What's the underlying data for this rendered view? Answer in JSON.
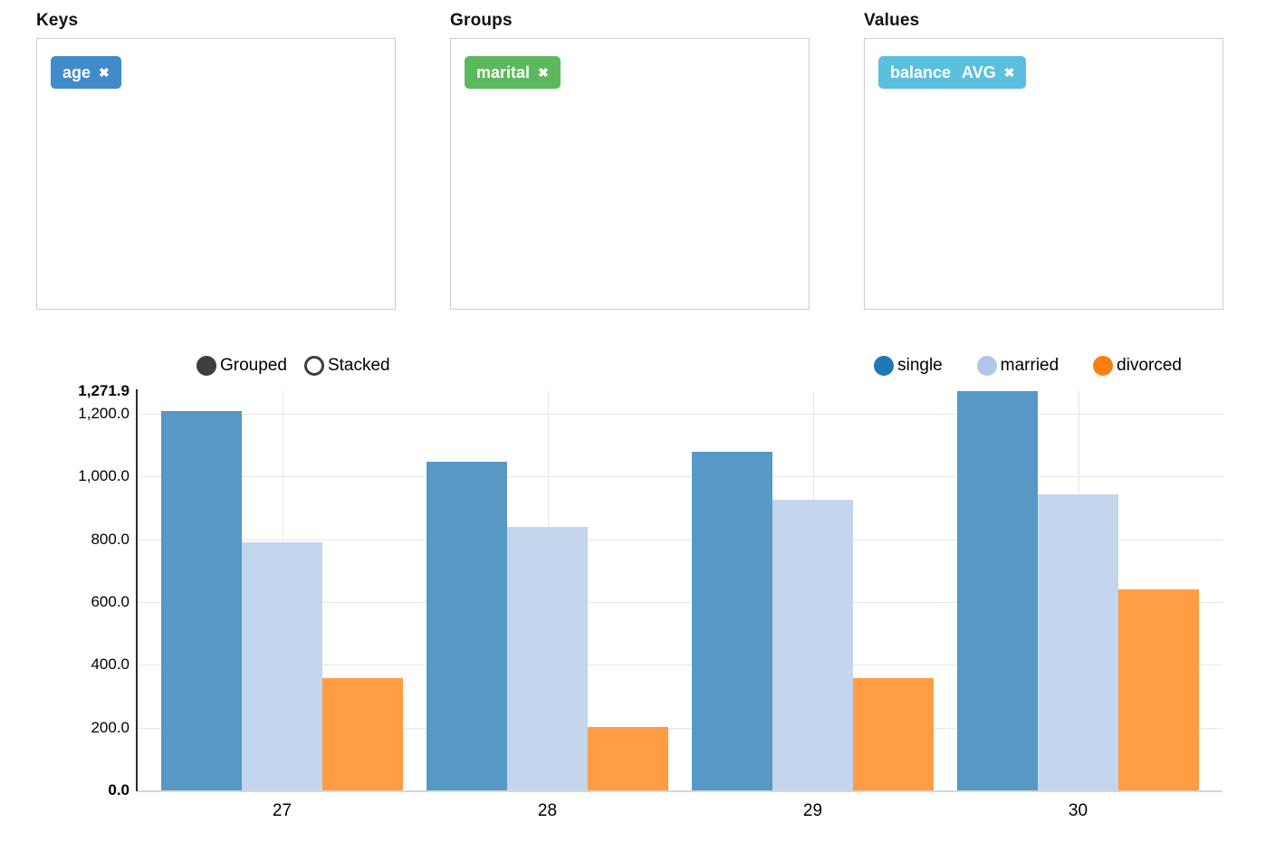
{
  "panels": [
    {
      "title": "Keys",
      "dropzone": "keys",
      "tags": [
        {
          "label": "age",
          "agg": "",
          "color": "#428bca",
          "remove_icon": "✖"
        }
      ]
    },
    {
      "title": "Groups",
      "dropzone": "groups",
      "tags": [
        {
          "label": "marital",
          "agg": "",
          "color": "#5cb85c",
          "remove_icon": "✖"
        }
      ]
    },
    {
      "title": "Values",
      "dropzone": "values",
      "tags": [
        {
          "label": "balance",
          "agg": "AVG",
          "color": "#5bc0de",
          "remove_icon": "✖"
        }
      ]
    }
  ],
  "chart_controls": [
    {
      "label": "Grouped",
      "selected": true
    },
    {
      "label": "Stacked",
      "selected": false
    }
  ],
  "chart_data": {
    "type": "bar",
    "mode": "grouped",
    "title": "",
    "xlabel": "",
    "ylabel": "",
    "categories": [
      "27",
      "28",
      "29",
      "30"
    ],
    "series": [
      {
        "name": "single",
        "legend_color": "#1f77b4",
        "bar_color": "#5798c5",
        "values": [
          1209,
          1047,
          1078,
          1271.9
        ]
      },
      {
        "name": "married",
        "legend_color": "#aec7e8",
        "bar_color": "#c3d6ee",
        "values": [
          791,
          838,
          925,
          942
        ]
      },
      {
        "name": "divorced",
        "legend_color": "#ff7f0e",
        "bar_color": "#ff9c44",
        "values": [
          357,
          203,
          357,
          641
        ]
      }
    ],
    "ylim": [
      0,
      1271.9
    ],
    "yticks": [
      0,
      200,
      400,
      600,
      800,
      1000,
      1200
    ],
    "ytick_labels": [
      "0.0",
      "200.0",
      "400.0",
      "600.0",
      "800.0",
      "1,000.0",
      "1,200.0"
    ],
    "ymax_label": "1,271.9",
    "grid": true,
    "legend_position": "top-right"
  }
}
